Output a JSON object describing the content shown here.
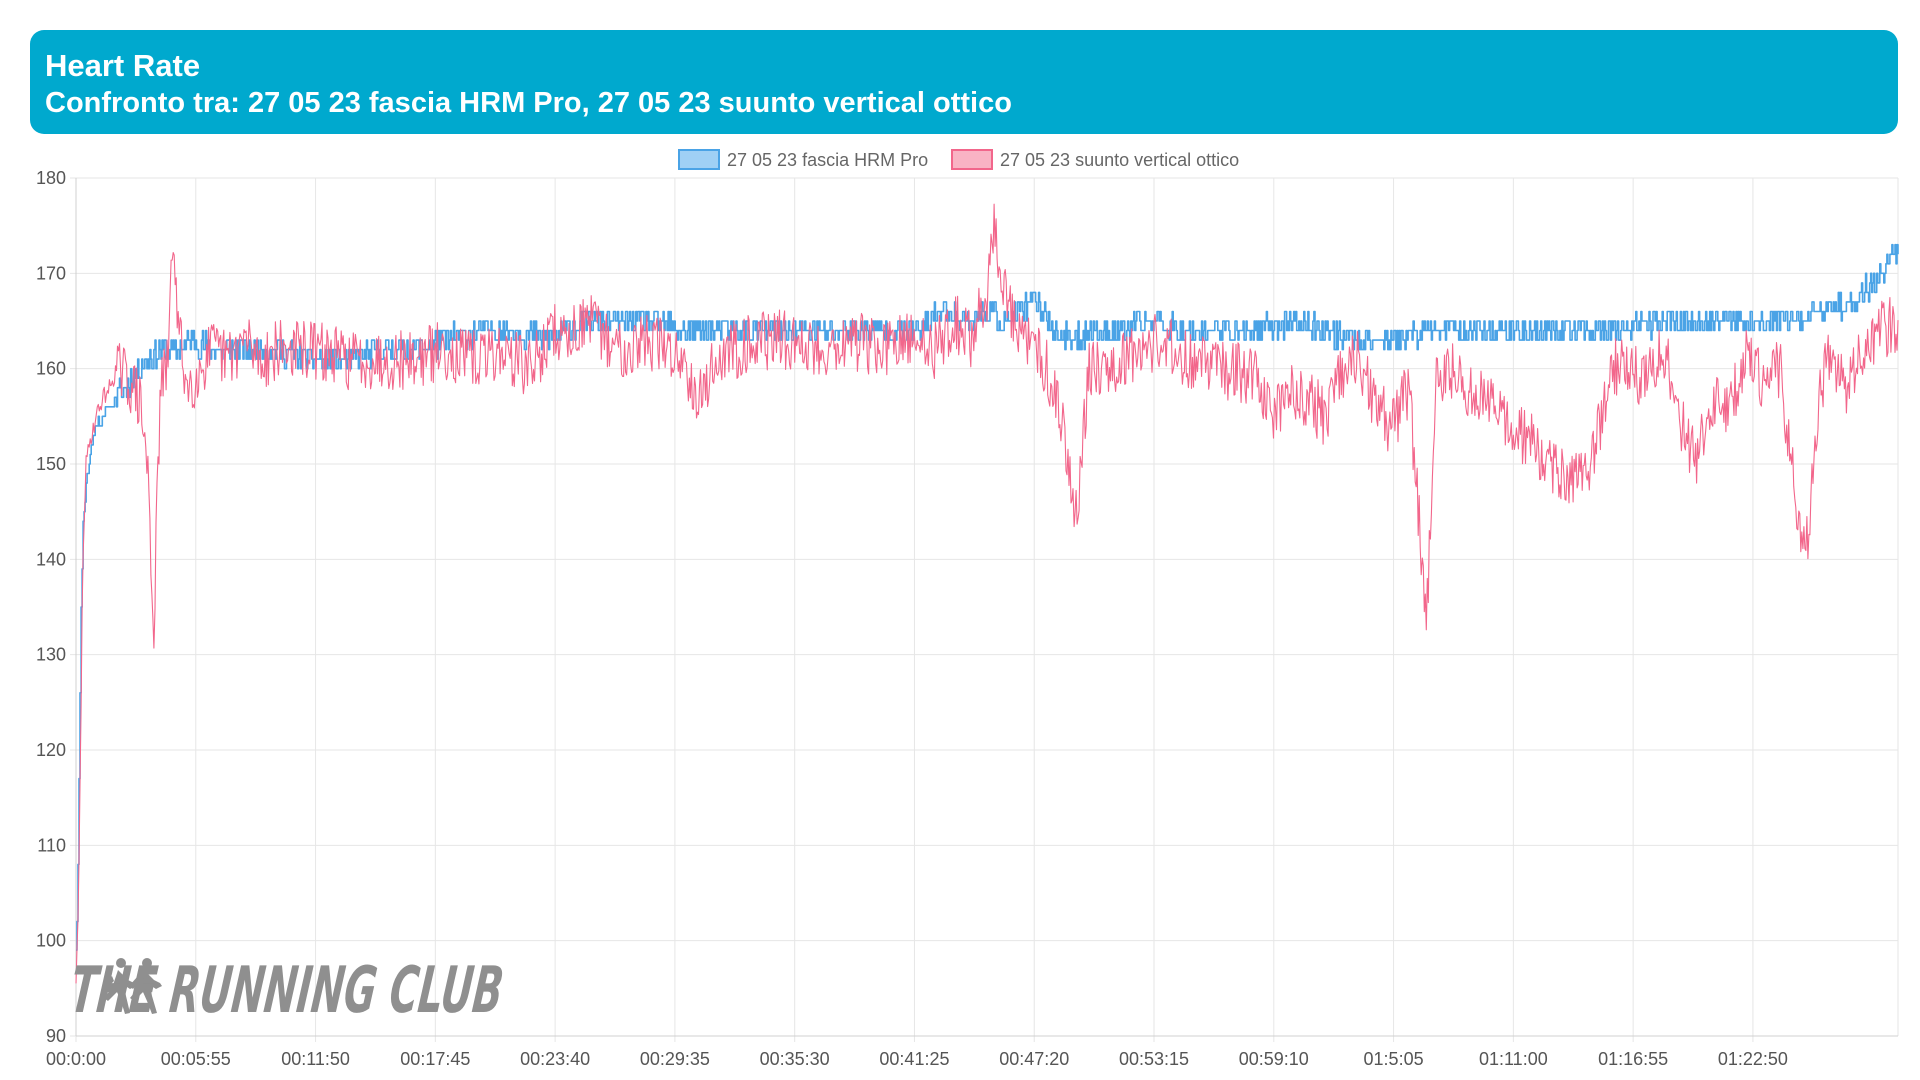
{
  "header": {
    "title": "Heart Rate",
    "subtitle": "Confronto tra: 27 05 23 fascia HRM Pro, 27 05 23 suunto vertical ottico"
  },
  "watermark": {
    "text": "THE RUNNING CLUB",
    "color": "#8f8f8f"
  },
  "colors": {
    "header_bg": "#00a9ce",
    "series_1": "#4aa3e6",
    "series_1_fill": "#9fd0f5",
    "series_2": "#f2668b",
    "series_2_fill": "#f9b3c4",
    "grid": "#e6e6e6"
  },
  "chart_data": {
    "type": "line",
    "title": "Heart Rate",
    "xlabel": "",
    "ylabel": "",
    "ylim": [
      90,
      180
    ],
    "xlim_seconds": [
      0,
      5400
    ],
    "grid": true,
    "legend_position": "top-center",
    "y_ticks": [
      90,
      100,
      110,
      120,
      130,
      140,
      150,
      160,
      170,
      180
    ],
    "x_tick_labels": [
      "00:0:00",
      "00:05:55",
      "00:11:50",
      "00:17:45",
      "00:23:40",
      "00:29:35",
      "00:35:30",
      "00:41:25",
      "00:47:20",
      "00:53:15",
      "00:59:10",
      "01:5:05",
      "01:11:00",
      "01:16:55",
      "01:22:50"
    ],
    "x_tick_seconds": [
      0,
      355,
      710,
      1065,
      1420,
      1775,
      2130,
      2485,
      2840,
      3195,
      3550,
      3905,
      4260,
      4615,
      4970
    ],
    "series": [
      {
        "name": "27 05 23 fascia HRM Pro",
        "color": "#4aa3e6",
        "x_seconds": [
          0,
          5,
          10,
          15,
          20,
          30,
          45,
          60,
          80,
          100,
          120,
          150,
          180,
          210,
          250,
          300,
          350,
          400,
          500,
          600,
          700,
          800,
          900,
          1000,
          1100,
          1200,
          1300,
          1400,
          1500,
          1600,
          1700,
          1800,
          1900,
          2000,
          2100,
          2200,
          2300,
          2400,
          2500,
          2550,
          2600,
          2650,
          2700,
          2750,
          2800,
          2850,
          2900,
          2950,
          3000,
          3100,
          3200,
          3300,
          3400,
          3500,
          3600,
          3700,
          3800,
          3900,
          4000,
          4100,
          4200,
          4300,
          4400,
          4500,
          4600,
          4700,
          4800,
          4900,
          5000,
          5100,
          5150,
          5200,
          5250,
          5300,
          5350,
          5400
        ],
        "y": [
          99,
          105,
          120,
          135,
          143,
          148,
          152,
          154,
          155,
          156,
          157,
          158,
          160,
          161,
          162,
          162,
          163,
          162,
          162,
          162,
          161,
          161,
          162,
          162,
          163,
          164,
          164,
          163,
          165,
          165,
          165,
          164,
          164,
          164,
          164,
          164,
          164,
          164,
          164,
          166,
          166,
          165,
          166,
          165,
          166,
          167,
          164,
          163,
          164,
          164,
          165,
          164,
          164,
          164,
          165,
          164,
          163,
          163,
          164,
          164,
          164,
          164,
          164,
          164,
          164,
          165,
          165,
          165,
          165,
          165,
          166,
          166,
          167,
          168,
          170,
          173
        ]
      },
      {
        "name": "27 05 23 suunto vertical ottico",
        "color": "#f2668b",
        "x_seconds": [
          0,
          5,
          10,
          15,
          20,
          30,
          45,
          60,
          80,
          100,
          120,
          150,
          170,
          185,
          195,
          205,
          215,
          230,
          250,
          270,
          290,
          300,
          330,
          370,
          400,
          450,
          500,
          550,
          600,
          650,
          700,
          800,
          900,
          1000,
          1100,
          1150,
          1200,
          1250,
          1300,
          1350,
          1400,
          1420,
          1450,
          1500,
          1550,
          1600,
          1700,
          1800,
          1850,
          1900,
          1950,
          2000,
          2100,
          2200,
          2300,
          2400,
          2500,
          2550,
          2600,
          2650,
          2700,
          2720,
          2750,
          2800,
          2850,
          2900,
          2920,
          2940,
          2960,
          2980,
          3000,
          3100,
          3200,
          3300,
          3400,
          3500,
          3550,
          3600,
          3650,
          3700,
          3750,
          3800,
          3850,
          3900,
          3950,
          3990,
          4000,
          4010,
          4030,
          4060,
          4100,
          4150,
          4200,
          4250,
          4300,
          4350,
          4400,
          4450,
          4500,
          4550,
          4600,
          4650,
          4700,
          4750,
          4800,
          4850,
          4900,
          4950,
          5000,
          5050,
          5100,
          5130,
          5150,
          5170,
          5200,
          5250,
          5300,
          5350,
          5400
        ],
        "y": [
          96,
          100,
          110,
          125,
          140,
          150,
          153,
          155,
          157,
          158,
          160,
          159,
          158,
          157,
          155,
          152,
          148,
          132,
          158,
          160,
          175,
          165,
          158,
          160,
          162,
          161,
          163,
          161,
          162,
          162,
          162,
          161,
          161,
          161,
          162,
          161,
          161,
          162,
          161,
          160,
          163,
          164,
          163,
          165,
          164,
          162,
          163,
          161,
          157,
          161,
          162,
          163,
          163,
          162,
          163,
          162,
          163,
          162,
          165,
          163,
          168,
          175,
          168,
          163,
          162,
          158,
          155,
          150,
          145,
          150,
          160,
          161,
          163,
          161,
          160,
          159,
          155,
          158,
          157,
          155,
          159,
          161,
          156,
          154,
          158,
          140,
          133,
          140,
          158,
          160,
          159,
          156,
          158,
          153,
          153,
          150,
          149,
          148,
          151,
          160,
          161,
          158,
          163,
          155,
          150,
          157,
          155,
          162,
          158,
          160,
          145,
          142,
          150,
          158,
          162,
          158,
          162,
          164,
          165
        ]
      }
    ]
  }
}
